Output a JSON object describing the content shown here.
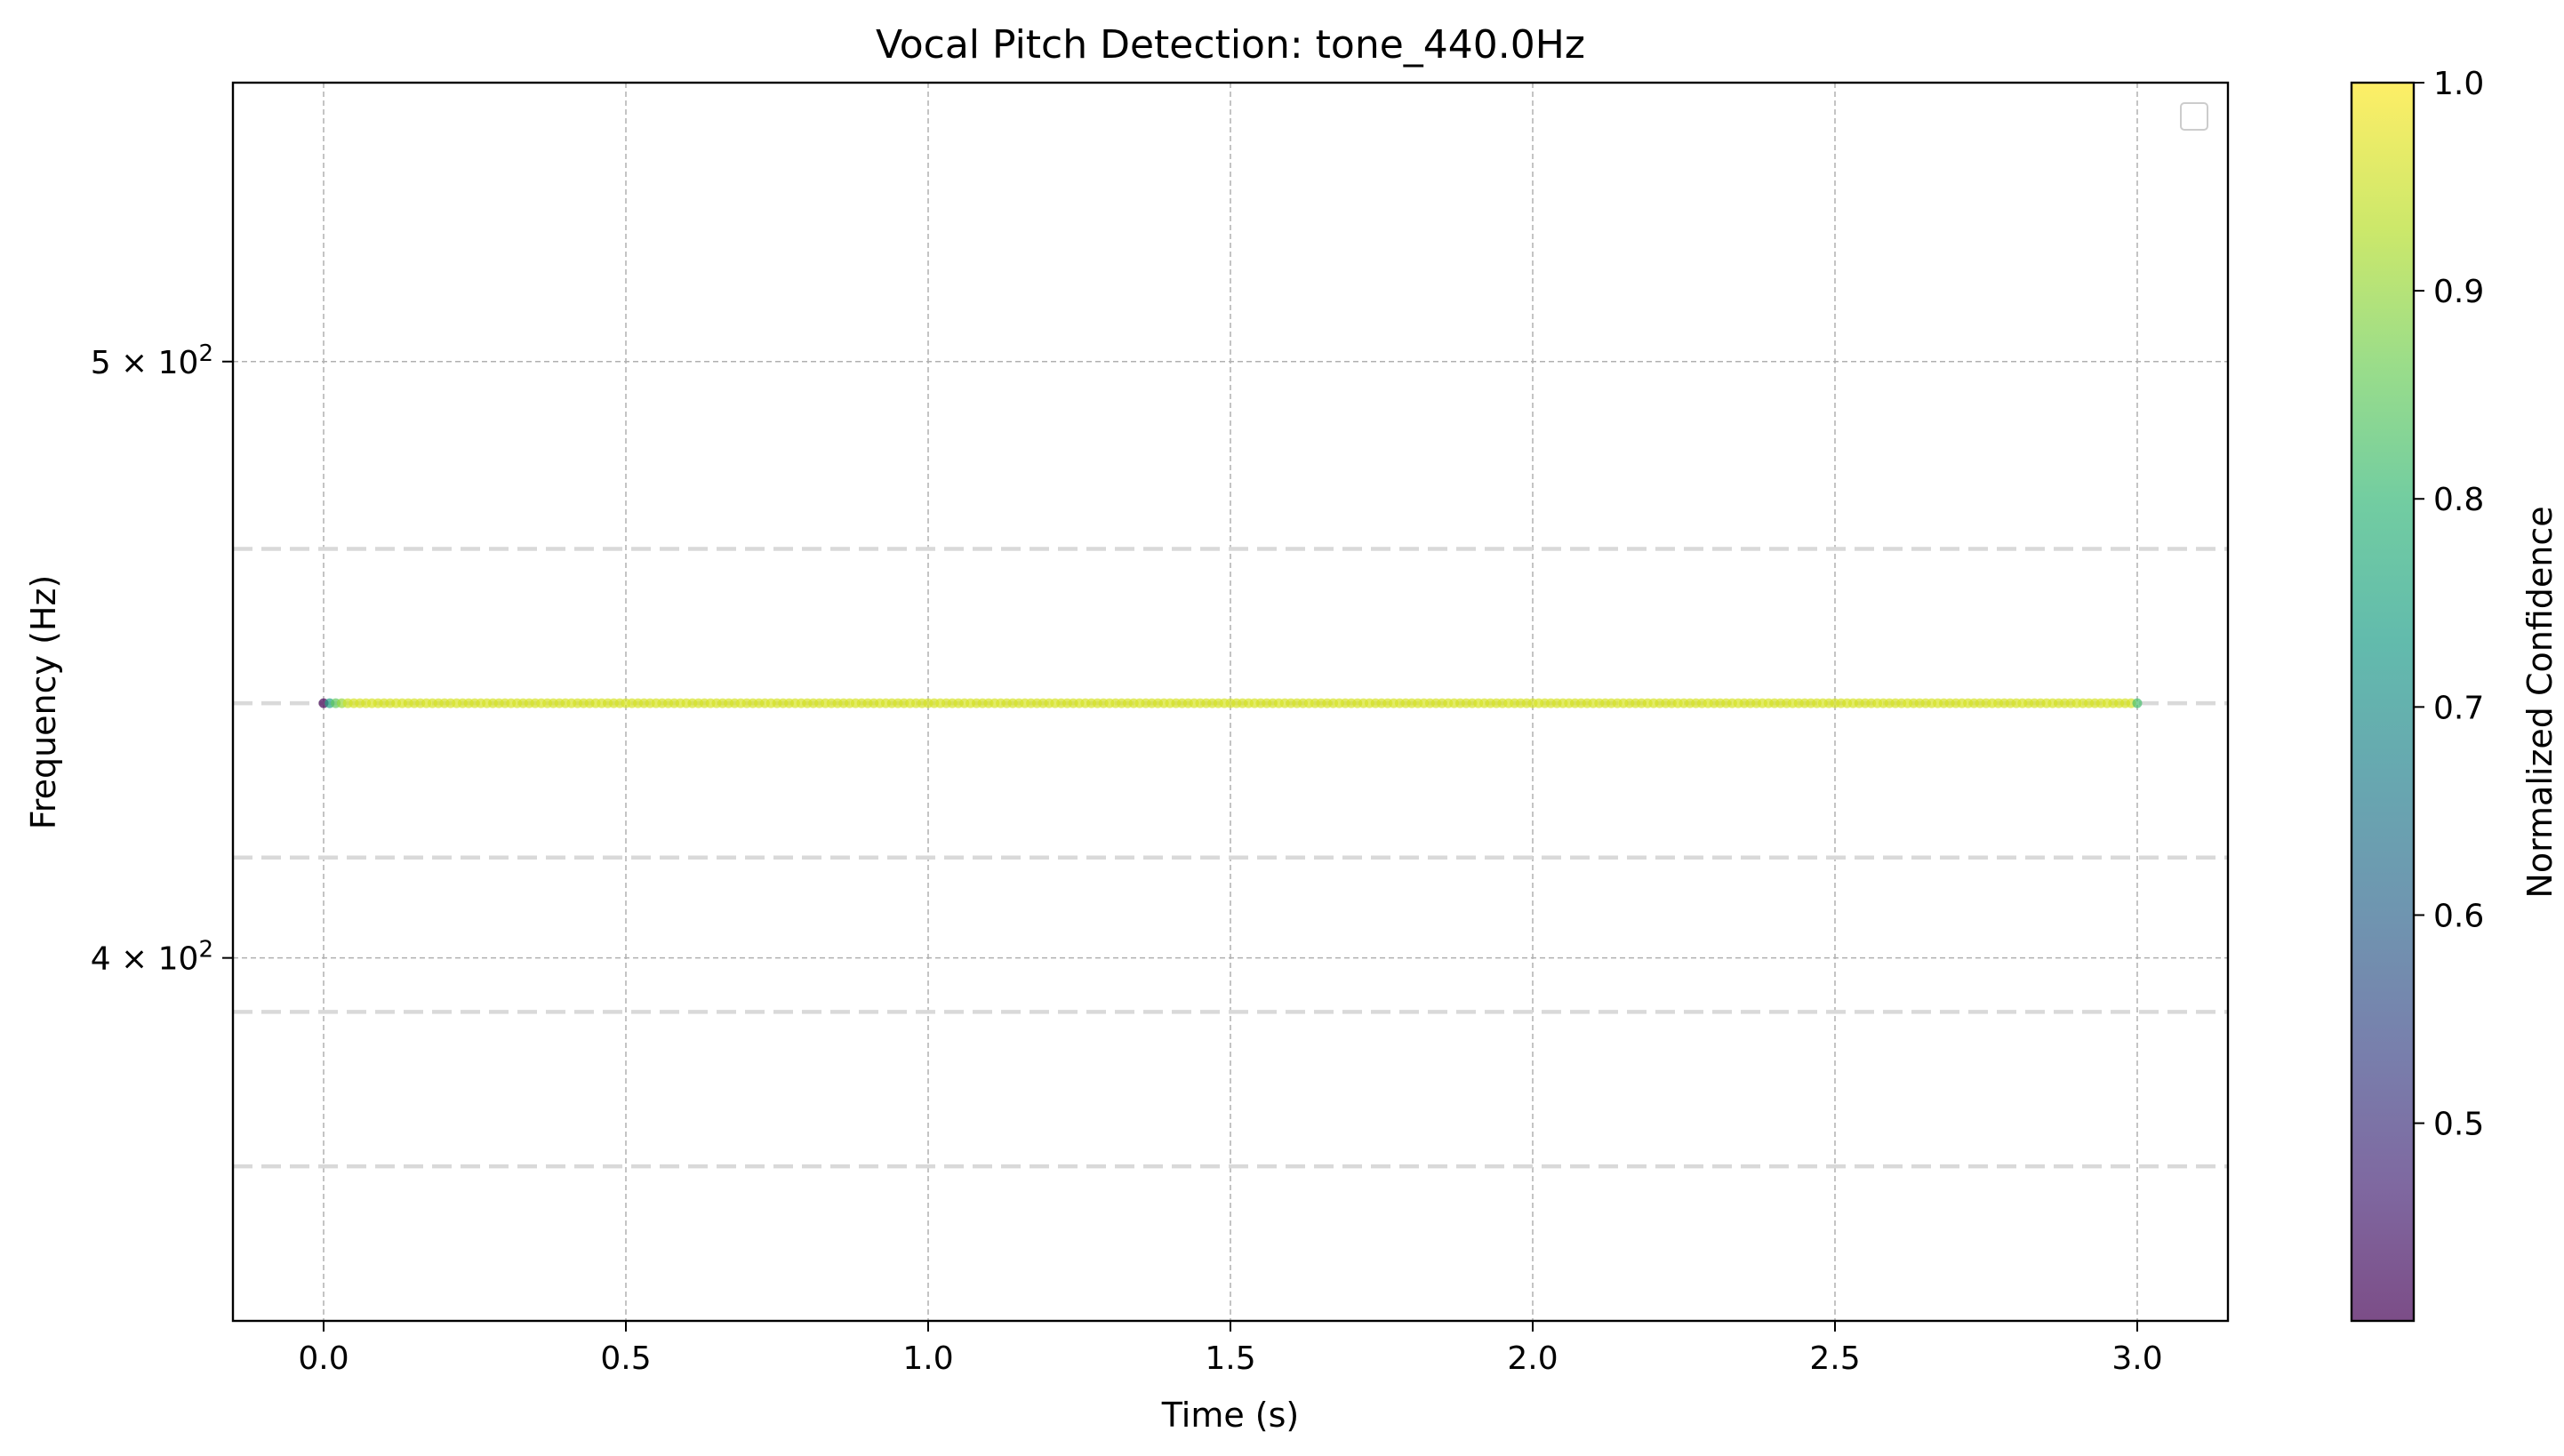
{
  "chart_data": {
    "type": "scatter",
    "title": "Vocal Pitch Detection: tone_440.0Hz",
    "xlabel": "Time (s)",
    "ylabel": "Frequency (Hz)",
    "xlim": [
      -0.15,
      3.15
    ],
    "ylim": [
      349.2,
      555
    ],
    "yscale": "log",
    "x_ticks": [
      0.0,
      0.5,
      1.0,
      1.5,
      2.0,
      2.5,
      3.0
    ],
    "x_tick_labels": [
      "0.0",
      "0.5",
      "1.0",
      "1.5",
      "2.0",
      "2.5",
      "3.0"
    ],
    "y_ticks": [
      400,
      500
    ],
    "y_tick_labels": [
      {
        "base": "4 × 10",
        "exp": "2"
      },
      {
        "base": "5 × 10",
        "exp": "2"
      }
    ],
    "grid": true,
    "reference_lines_hz": [
      369.99,
      392.0,
      415.3,
      440.0,
      466.16
    ],
    "series": [
      {
        "x_start": 0.0,
        "x_end": 3.0,
        "x_step": 0.01,
        "frequency_hz": 440.0,
        "confidence_pattern": [
          0.41,
          0.75,
          0.85,
          0.9,
          0.95
        ],
        "confidence_steady": 0.96,
        "confidence_end": 0.82
      }
    ],
    "legend": {
      "placement": "upper right",
      "entries": []
    },
    "colorbar": {
      "label": "Normalized Confidence",
      "range": [
        0.405,
        1.0
      ],
      "ticks": [
        0.5,
        0.6,
        0.7,
        0.8,
        0.9,
        1.0
      ],
      "tick_labels": [
        "0.5",
        "0.6",
        "0.7",
        "0.8",
        "0.9",
        "1.0"
      ],
      "colormap": "viridis",
      "alpha": 0.7
    }
  }
}
